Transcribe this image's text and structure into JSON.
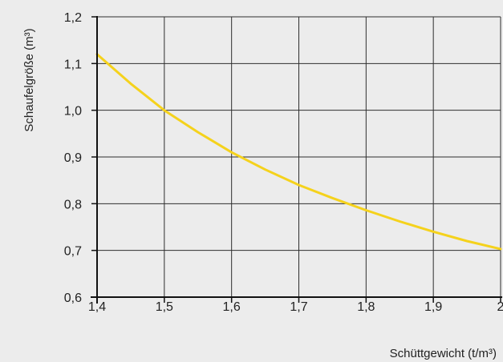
{
  "chart_data": {
    "type": "line",
    "title": "",
    "xlabel": "Schüttgewicht (t/m³)",
    "ylabel": "Schaufelgröße (m³)",
    "xlim": [
      1.4,
      2.0
    ],
    "ylim": [
      0.6,
      1.2
    ],
    "x_ticks": [
      "1,4",
      "1,5",
      "1,6",
      "1,7",
      "1,8",
      "1,9",
      "2"
    ],
    "y_ticks": [
      "0,6",
      "0,7",
      "0,8",
      "0,9",
      "1,0",
      "1,1",
      "1,2"
    ],
    "grid": true,
    "series": [
      {
        "color": "#f5d21c",
        "x": [
          1.4,
          1.45,
          1.5,
          1.55,
          1.6,
          1.65,
          1.7,
          1.75,
          1.8,
          1.85,
          1.9,
          1.95,
          2.0
        ],
        "y": [
          1.12,
          1.057,
          1.0,
          0.953,
          0.91,
          0.873,
          0.84,
          0.812,
          0.786,
          0.762,
          0.74,
          0.72,
          0.703
        ]
      }
    ]
  }
}
